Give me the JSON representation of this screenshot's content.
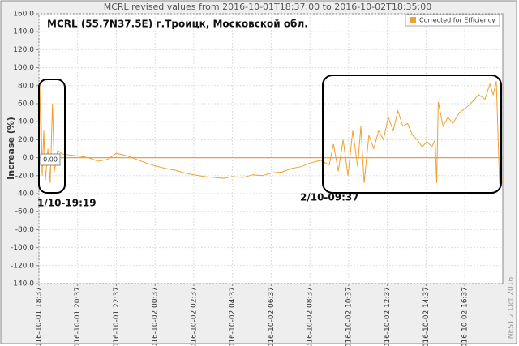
{
  "chart_data": {
    "type": "line",
    "title": "MCRL revised values from 2016-10-01T18:37:00 to 2016-10-02T18:35:00",
    "subtitle": "MCRL (55.7N37.5E) г.Троицк, Московской обл.",
    "y_label": "Increase (%)",
    "credit": "NEST  2 Oct 2016",
    "annotations": [
      "1/10-19:19",
      "2/10-09:37",
      "0.00"
    ],
    "hline": 0,
    "grid": true,
    "legend": "top-right",
    "xlim": [
      "2016-10-01 18:37",
      "2016-10-02 18:35"
    ],
    "xticks": [
      "2016-10-01 18:37",
      "2016-10-01 20:37",
      "2016-10-01 22:37",
      "2016-10-02 00:37",
      "2016-10-02 02:37",
      "2016-10-02 04:37",
      "2016-10-02 06:37",
      "2016-10-02 08:37",
      "2016-10-02 10:37",
      "2016-10-02 12:37",
      "2016-10-02 14:37",
      "2016-10-02 16:37"
    ],
    "ylim": [
      -140,
      160
    ],
    "yticks": [
      {
        "value": 160,
        "label": "160.0"
      },
      {
        "value": 140,
        "label": "140.0"
      },
      {
        "value": 120,
        "label": "120.0"
      },
      {
        "value": 100,
        "label": "100.0"
      },
      {
        "value": 80,
        "label": "80.0"
      },
      {
        "value": 60,
        "label": "60.0"
      },
      {
        "value": 40,
        "label": "40.0"
      },
      {
        "value": 20,
        "label": "20.0"
      },
      {
        "value": 0,
        "label": "0.0"
      },
      {
        "value": -20,
        "label": "-20.0"
      },
      {
        "value": -40,
        "label": "-40.0"
      },
      {
        "value": -60,
        "label": "-60.0"
      },
      {
        "value": -80,
        "label": "-80.0"
      },
      {
        "value": -100,
        "label": "-100.0"
      },
      {
        "value": -120,
        "label": "-120.0"
      },
      {
        "value": -140,
        "label": "-140.0"
      }
    ],
    "x": [
      "2016-10-01 18:37",
      "2016-10-01 18:42",
      "2016-10-01 18:47",
      "2016-10-01 18:52",
      "2016-10-01 18:57",
      "2016-10-01 19:05",
      "2016-10-01 19:12",
      "2016-10-01 19:19",
      "2016-10-01 19:25",
      "2016-10-01 19:35",
      "2016-10-01 19:50",
      "2016-10-01 20:10",
      "2016-10-01 20:37",
      "2016-10-01 21:10",
      "2016-10-01 21:40",
      "2016-10-01 22:10",
      "2016-10-01 22:37",
      "2016-10-01 23:10",
      "2016-10-01 23:40",
      "2016-10-02 00:10",
      "2016-10-02 00:37",
      "2016-10-02 01:10",
      "2016-10-02 01:40",
      "2016-10-02 02:10",
      "2016-10-02 02:37",
      "2016-10-02 03:10",
      "2016-10-02 03:40",
      "2016-10-02 04:10",
      "2016-10-02 04:37",
      "2016-10-02 05:10",
      "2016-10-02 05:40",
      "2016-10-02 06:10",
      "2016-10-02 06:37",
      "2016-10-02 07:10",
      "2016-10-02 07:40",
      "2016-10-02 08:10",
      "2016-10-02 08:37",
      "2016-10-02 09:10",
      "2016-10-02 09:37",
      "2016-10-02 09:50",
      "2016-10-02 10:05",
      "2016-10-02 10:20",
      "2016-10-02 10:35",
      "2016-10-02 10:50",
      "2016-10-02 11:05",
      "2016-10-02 11:15",
      "2016-10-02 11:25",
      "2016-10-02 11:40",
      "2016-10-02 11:55",
      "2016-10-02 12:10",
      "2016-10-02 12:25",
      "2016-10-02 12:40",
      "2016-10-02 12:55",
      "2016-10-02 13:10",
      "2016-10-02 13:25",
      "2016-10-02 13:40",
      "2016-10-02 13:55",
      "2016-10-02 14:10",
      "2016-10-02 14:25",
      "2016-10-02 14:40",
      "2016-10-02 14:55",
      "2016-10-02 15:05",
      "2016-10-02 15:10",
      "2016-10-02 15:15",
      "2016-10-02 15:30",
      "2016-10-02 15:45",
      "2016-10-02 16:00",
      "2016-10-02 16:20",
      "2016-10-02 16:40",
      "2016-10-02 17:00",
      "2016-10-02 17:20",
      "2016-10-02 17:40",
      "2016-10-02 17:55",
      "2016-10-02 18:05",
      "2016-10-02 18:15",
      "2016-10-02 18:25",
      "2016-10-02 18:35"
    ],
    "series": [
      {
        "name": "Corrected for Efficiency",
        "color": "#f0a030",
        "values": [
          -5,
          80,
          -20,
          30,
          -25,
          10,
          -28,
          60,
          -15,
          8,
          4,
          3,
          2,
          0,
          -4,
          -2,
          5,
          2,
          -2,
          -6,
          -9,
          -12,
          -14,
          -17,
          -19,
          -21,
          -22,
          -23,
          -21,
          -22,
          -19,
          -20,
          -17,
          -16,
          -12,
          -10,
          -6,
          -3,
          -8,
          15,
          -15,
          20,
          -20,
          30,
          -10,
          35,
          -28,
          25,
          10,
          30,
          20,
          45,
          30,
          52,
          35,
          38,
          25,
          20,
          12,
          18,
          12,
          20,
          -28,
          62,
          35,
          45,
          38,
          50,
          55,
          62,
          70,
          65,
          82,
          70,
          85,
          -28,
          -25
        ]
      }
    ]
  }
}
